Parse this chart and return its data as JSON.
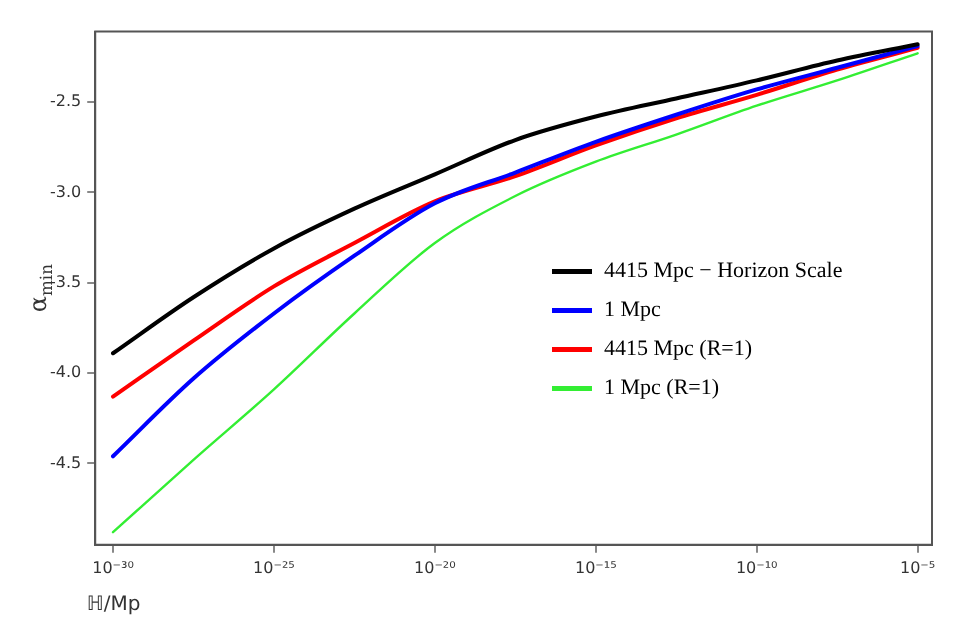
{
  "chart_data": {
    "type": "line",
    "xlabel": "ℍ/Mp",
    "ylabel": "α$_{min}$",
    "log": "x",
    "x": [
      1e-30,
      3.16e-28,
      1e-25,
      3.16e-23,
      1e-20,
      3.16e-18,
      1e-15,
      3.16e-13,
      1e-10,
      3.16e-08,
      1e-05
    ],
    "series": [
      {
        "name": "4415 Mpc − Horizon Scale",
        "color": "#000000",
        "values": [
          -3.89,
          -3.58,
          -3.31,
          -3.09,
          -2.9,
          -2.71,
          -2.58,
          -2.48,
          -2.38,
          -2.27,
          -2.18
        ]
      },
      {
        "name": "1 Mpc",
        "color": "#0000ff",
        "values": [
          -4.46,
          -4.03,
          -3.67,
          -3.35,
          -3.06,
          -2.89,
          -2.72,
          -2.57,
          -2.43,
          -2.31,
          -2.19
        ]
      },
      {
        "name": "4415 Mpc (R=1)",
        "color": "#ff0000",
        "values": [
          -4.13,
          -3.82,
          -3.52,
          -3.28,
          -3.05,
          -2.91,
          -2.74,
          -2.59,
          -2.46,
          -2.32,
          -2.2
        ]
      },
      {
        "name": "1 Mpc (R=1)",
        "color": "#33ee33",
        "values": [
          -4.88,
          -4.48,
          -4.09,
          -3.67,
          -3.28,
          -3.02,
          -2.83,
          -2.68,
          -2.52,
          -2.38,
          -2.23
        ]
      }
    ],
    "xlim": [
      2.8e-31,
      2.8e-05
    ],
    "xticks": [
      {
        "value": 1e-30,
        "label": "10⁻³⁰"
      },
      {
        "value": 1e-25,
        "label": "10⁻²⁵"
      },
      {
        "value": 1e-20,
        "label": "10⁻²⁰"
      },
      {
        "value": 1e-15,
        "label": "10⁻¹⁵"
      },
      {
        "value": 1e-10,
        "label": "10⁻¹⁰"
      },
      {
        "value": 1e-05,
        "label": "10⁻⁵"
      }
    ],
    "ylim": [
      -4.95,
      -2.11
    ],
    "yticks": [
      {
        "value": -2.5,
        "label": "-2.5"
      },
      {
        "value": -3,
        "label": "-3.0"
      },
      {
        "value": -3.5,
        "label": "-3.5"
      },
      {
        "value": -4,
        "label": "-4.0"
      },
      {
        "value": -4.5,
        "label": "-4.5"
      }
    ],
    "grid": false,
    "legend": "right",
    "marker": "none",
    "line_style": "solid"
  }
}
